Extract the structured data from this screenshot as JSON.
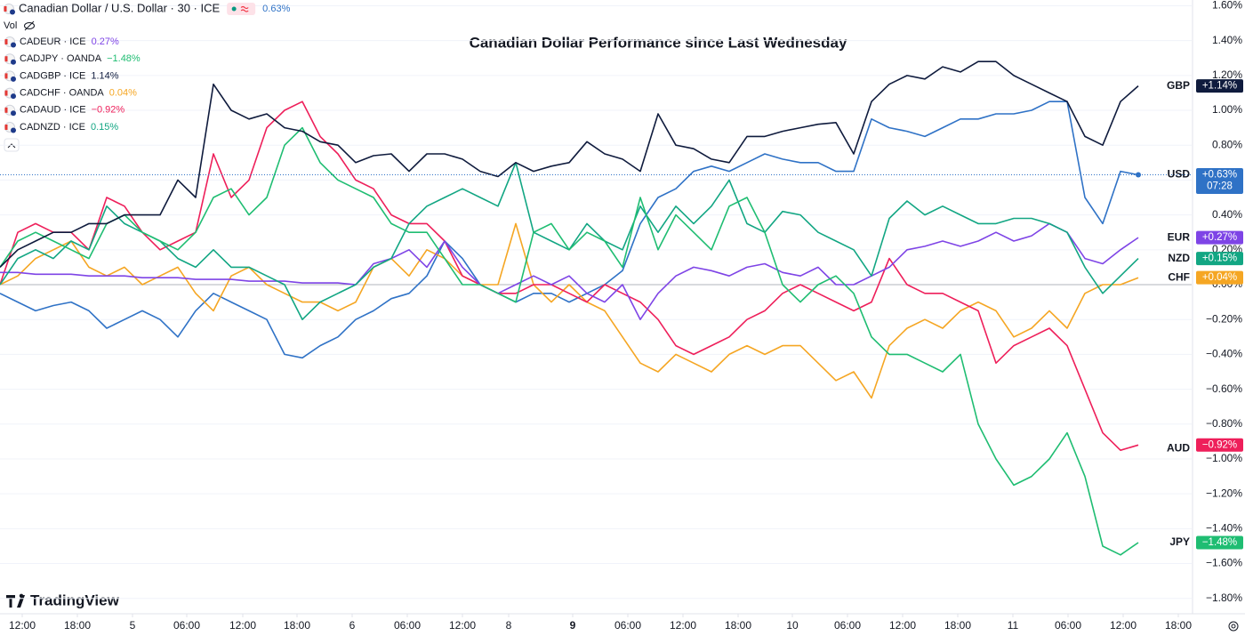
{
  "chart_data": {
    "type": "line",
    "title": "Canadian Dollar Performance since Last Wednesday",
    "volume_label": "Vol",
    "countdown": "07:28",
    "watermark": "TradingView",
    "grid": true,
    "x": [
      0,
      1,
      2,
      3,
      4,
      5,
      6,
      7,
      8,
      9,
      10,
      11,
      12,
      13,
      14,
      15,
      16,
      17,
      18,
      19,
      20,
      21,
      22,
      23,
      24,
      25,
      26,
      27,
      28,
      29,
      30,
      31,
      32,
      33,
      34,
      35,
      36,
      37,
      38,
      39,
      40,
      41,
      42,
      43,
      44,
      45,
      46,
      47,
      48,
      49,
      50,
      51,
      52,
      53,
      54,
      55,
      56,
      57,
      58,
      59,
      60,
      61,
      62,
      63,
      64
    ],
    "xlim": [
      0,
      67
    ],
    "xticks": [
      {
        "value": 1.25,
        "label": "12:00"
      },
      {
        "value": 4.35,
        "label": "18:00"
      },
      {
        "value": 7.45,
        "label": "5"
      },
      {
        "value": 10.5,
        "label": "06:00"
      },
      {
        "value": 13.65,
        "label": "12:00"
      },
      {
        "value": 16.7,
        "label": "18:00"
      },
      {
        "value": 19.8,
        "label": "6"
      },
      {
        "value": 22.9,
        "label": "06:00"
      },
      {
        "value": 26,
        "label": "12:00"
      },
      {
        "value": 28.6,
        "label": "8"
      },
      {
        "value": 32.2,
        "label": "9",
        "bold": true
      },
      {
        "value": 35.3,
        "label": "06:00"
      },
      {
        "value": 38.4,
        "label": "12:00"
      },
      {
        "value": 41.5,
        "label": "18:00"
      },
      {
        "value": 44.55,
        "label": "10"
      },
      {
        "value": 47.65,
        "label": "06:00"
      },
      {
        "value": 50.75,
        "label": "12:00"
      },
      {
        "value": 53.85,
        "label": "18:00"
      },
      {
        "value": 56.95,
        "label": "11"
      },
      {
        "value": 60.05,
        "label": "06:00"
      },
      {
        "value": 63.15,
        "label": "12:00"
      },
      {
        "value": 66.25,
        "label": "18:00"
      }
    ],
    "ylim": [
      -1.888,
      1.633
    ],
    "yticks": [
      {
        "value": -1.8,
        "label": "−1.80%"
      },
      {
        "value": -1.6,
        "label": "−1.60%"
      },
      {
        "value": -1.4,
        "label": "−1.40%"
      },
      {
        "value": -1.2,
        "label": "−1.20%"
      },
      {
        "value": -1.0,
        "label": "−1.00%"
      },
      {
        "value": -0.8,
        "label": "−0.80%"
      },
      {
        "value": -0.6,
        "label": "−0.60%"
      },
      {
        "value": -0.4,
        "label": "−0.40%"
      },
      {
        "value": -0.2,
        "label": "−0.20%"
      },
      {
        "value": 0,
        "label": "0.00%"
      },
      {
        "value": 0.2,
        "label": "0.20%"
      },
      {
        "value": 0.4,
        "label": "0.40%"
      },
      {
        "value": 0.6,
        "label": "0.60%"
      },
      {
        "value": 0.8,
        "label": "0.80%"
      },
      {
        "value": 1.0,
        "label": "1.00%"
      },
      {
        "value": 1.2,
        "label": "1.20%"
      },
      {
        "value": 1.4,
        "label": "1.40%"
      },
      {
        "value": 1.6,
        "label": "1.60%"
      }
    ],
    "series": [
      {
        "name": "USD",
        "symbol": "Canadian Dollar / U.S. Dollar · 30 · ICE",
        "legend_value": "0.63%",
        "end_label": "+0.63%",
        "color": "#2f72c6",
        "values": [
          -0.05,
          -0.1,
          -0.15,
          -0.12,
          -0.1,
          -0.15,
          -0.25,
          -0.2,
          -0.15,
          -0.2,
          -0.3,
          -0.15,
          -0.05,
          -0.1,
          -0.15,
          -0.2,
          -0.4,
          -0.42,
          -0.35,
          -0.3,
          -0.2,
          -0.15,
          -0.08,
          -0.05,
          0.05,
          0.25,
          0.15,
          0.0,
          -0.05,
          -0.1,
          -0.05,
          -0.05,
          -0.1,
          -0.05,
          0.0,
          0.08,
          0.35,
          0.5,
          0.55,
          0.65,
          0.68,
          0.65,
          0.7,
          0.75,
          0.72,
          0.7,
          0.7,
          0.65,
          0.65,
          0.95,
          0.9,
          0.88,
          0.85,
          0.9,
          0.95,
          0.95,
          0.98,
          0.98,
          1.0,
          1.05,
          1.05,
          0.5,
          0.35,
          0.65,
          0.63
        ]
      },
      {
        "name": "EUR",
        "symbol": "CADEUR · ICE",
        "legend_value": "0.27%",
        "end_label": "+0.27%",
        "color": "#7e44e6",
        "values": [
          0.07,
          0.07,
          0.06,
          0.06,
          0.06,
          0.05,
          0.05,
          0.05,
          0.04,
          0.04,
          0.04,
          0.03,
          0.03,
          0.03,
          0.02,
          0.02,
          0.02,
          0.01,
          0.01,
          0.01,
          0.0,
          0.12,
          0.15,
          0.2,
          0.1,
          0.25,
          0.1,
          0.0,
          -0.05,
          0.0,
          0.05,
          0.0,
          0.05,
          -0.05,
          -0.1,
          0.0,
          -0.2,
          -0.05,
          0.05,
          0.1,
          0.08,
          0.05,
          0.1,
          0.12,
          0.07,
          0.05,
          0.1,
          0.0,
          0.0,
          0.05,
          0.1,
          0.2,
          0.22,
          0.25,
          0.22,
          0.25,
          0.3,
          0.25,
          0.28,
          0.35,
          0.3,
          0.15,
          0.12,
          0.2,
          0.27
        ]
      },
      {
        "name": "JPY",
        "symbol": "CADJPY · OANDA",
        "legend_value": "−1.48%",
        "end_label": "−1.48%",
        "color": "#1fbd72",
        "values": [
          0.1,
          0.25,
          0.3,
          0.25,
          0.2,
          0.15,
          0.35,
          0.4,
          0.3,
          0.25,
          0.2,
          0.3,
          0.5,
          0.55,
          0.4,
          0.5,
          0.8,
          0.9,
          0.7,
          0.6,
          0.55,
          0.5,
          0.35,
          0.3,
          0.3,
          0.15,
          0.0,
          0.0,
          -0.05,
          -0.1,
          0.3,
          0.35,
          0.2,
          0.3,
          0.25,
          0.1,
          0.5,
          0.2,
          0.4,
          0.3,
          0.2,
          0.45,
          0.5,
          0.3,
          0.0,
          -0.1,
          0.0,
          0.05,
          -0.05,
          -0.3,
          -0.4,
          -0.4,
          -0.45,
          -0.5,
          -0.4,
          -0.8,
          -1.0,
          -1.15,
          -1.1,
          -1.0,
          -0.85,
          -1.1,
          -1.5,
          -1.55,
          -1.48
        ]
      },
      {
        "name": "GBP",
        "symbol": "CADGBP · ICE",
        "legend_value": "1.14%",
        "end_label": "+1.14%",
        "color": "#0f1b3d",
        "values": [
          0.1,
          0.2,
          0.25,
          0.3,
          0.3,
          0.35,
          0.35,
          0.4,
          0.4,
          0.4,
          0.6,
          0.5,
          1.15,
          1.0,
          0.95,
          0.98,
          0.9,
          0.88,
          0.82,
          0.8,
          0.7,
          0.74,
          0.75,
          0.65,
          0.75,
          0.75,
          0.72,
          0.65,
          0.62,
          0.7,
          0.65,
          0.68,
          0.7,
          0.82,
          0.75,
          0.72,
          0.65,
          0.98,
          0.8,
          0.78,
          0.72,
          0.7,
          0.85,
          0.85,
          0.88,
          0.9,
          0.92,
          0.93,
          0.75,
          1.05,
          1.15,
          1.2,
          1.18,
          1.25,
          1.22,
          1.28,
          1.28,
          1.2,
          1.15,
          1.1,
          1.05,
          0.85,
          0.8,
          1.05,
          1.14
        ]
      },
      {
        "name": "CHF",
        "symbol": "CADCHF · OANDA",
        "legend_value": "0.04%",
        "end_label": "+0.04%",
        "color": "#f5a623",
        "values": [
          0.0,
          0.05,
          0.15,
          0.2,
          0.25,
          0.1,
          0.05,
          0.1,
          0.0,
          0.05,
          0.1,
          -0.05,
          -0.15,
          0.05,
          0.1,
          0.0,
          -0.05,
          -0.1,
          -0.1,
          -0.15,
          -0.1,
          0.1,
          0.15,
          0.05,
          0.2,
          0.15,
          0.05,
          0.0,
          0.0,
          0.35,
          0.0,
          -0.1,
          0.0,
          -0.1,
          -0.15,
          -0.3,
          -0.45,
          -0.5,
          -0.4,
          -0.45,
          -0.5,
          -0.4,
          -0.35,
          -0.4,
          -0.35,
          -0.35,
          -0.45,
          -0.55,
          -0.5,
          -0.65,
          -0.35,
          -0.25,
          -0.2,
          -0.25,
          -0.15,
          -0.1,
          -0.15,
          -0.3,
          -0.25,
          -0.15,
          -0.25,
          -0.05,
          0.0,
          0.0,
          0.04
        ]
      },
      {
        "name": "AUD",
        "symbol": "CADAUD · ICE",
        "legend_value": "−0.92%",
        "end_label": "−0.92%",
        "color": "#ee1f5a",
        "values": [
          0.0,
          0.3,
          0.35,
          0.3,
          0.3,
          0.2,
          0.5,
          0.45,
          0.3,
          0.2,
          0.25,
          0.3,
          0.75,
          0.5,
          0.6,
          0.9,
          1.0,
          1.05,
          0.85,
          0.75,
          0.6,
          0.55,
          0.4,
          0.35,
          0.35,
          0.25,
          0.05,
          0.0,
          -0.05,
          -0.05,
          0.0,
          0.0,
          -0.05,
          -0.1,
          0.0,
          -0.05,
          -0.1,
          -0.2,
          -0.35,
          -0.4,
          -0.35,
          -0.3,
          -0.2,
          -0.15,
          -0.05,
          0.0,
          -0.05,
          -0.1,
          -0.15,
          -0.1,
          0.15,
          0.0,
          -0.05,
          -0.05,
          -0.1,
          -0.15,
          -0.45,
          -0.35,
          -0.3,
          -0.25,
          -0.35,
          -0.6,
          -0.85,
          -0.95,
          -0.92
        ]
      },
      {
        "name": "NZD",
        "symbol": "CADNZD · ICE",
        "legend_value": "0.15%",
        "end_label": "+0.15%",
        "color": "#12a683",
        "values": [
          0.0,
          0.15,
          0.2,
          0.15,
          0.25,
          0.2,
          0.45,
          0.35,
          0.3,
          0.25,
          0.15,
          0.1,
          0.2,
          0.1,
          0.1,
          0.05,
          0.0,
          -0.2,
          -0.1,
          -0.05,
          0.0,
          0.1,
          0.15,
          0.35,
          0.45,
          0.5,
          0.55,
          0.5,
          0.45,
          0.7,
          0.3,
          0.25,
          0.2,
          0.35,
          0.25,
          0.2,
          0.45,
          0.3,
          0.45,
          0.35,
          0.45,
          0.6,
          0.35,
          0.3,
          0.42,
          0.4,
          0.3,
          0.25,
          0.2,
          0.05,
          0.38,
          0.48,
          0.4,
          0.45,
          0.4,
          0.35,
          0.35,
          0.38,
          0.38,
          0.35,
          0.3,
          0.1,
          -0.05,
          0.05,
          0.15
        ]
      }
    ]
  }
}
